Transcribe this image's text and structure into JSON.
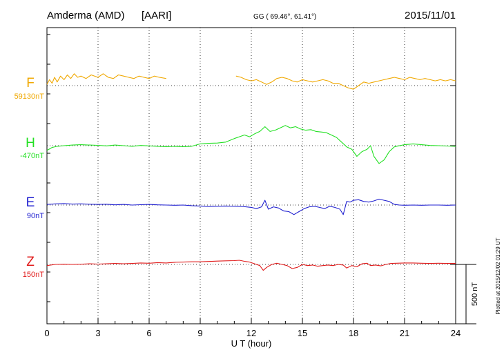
{
  "chart_data": {
    "type": "line",
    "station": "Amderma (AMD)",
    "institute": "[AARI]",
    "coords": "GG ( 69.46°,  61.41°)",
    "date": "2015/11/01",
    "xlabel": "U T (hour)",
    "x_ticks": [
      "0",
      "3",
      "6",
      "9",
      "12",
      "15",
      "18",
      "21",
      "24"
    ],
    "xlim": [
      0,
      24
    ],
    "scale_label": "500 nT",
    "plotted_note": "Plotted at 2015/12/02 01:29 UT",
    "grid": true,
    "series": [
      {
        "name": "F",
        "baseline_label": "59130nT",
        "color": "#f0a800",
        "baseline_value": 59130,
        "gap": [
          7.1,
          11.1
        ],
        "points": [
          [
            0.0,
            59140
          ],
          [
            0.15,
            59180
          ],
          [
            0.3,
            59150
          ],
          [
            0.45,
            59200
          ],
          [
            0.6,
            59160
          ],
          [
            0.8,
            59210
          ],
          [
            1.0,
            59180
          ],
          [
            1.2,
            59220
          ],
          [
            1.4,
            59190
          ],
          [
            1.6,
            59230
          ],
          [
            1.8,
            59200
          ],
          [
            2.0,
            59210
          ],
          [
            2.3,
            59190
          ],
          [
            2.6,
            59220
          ],
          [
            3.0,
            59200
          ],
          [
            3.3,
            59230
          ],
          [
            3.6,
            59200
          ],
          [
            3.9,
            59190
          ],
          [
            4.2,
            59220
          ],
          [
            4.5,
            59210
          ],
          [
            4.8,
            59200
          ],
          [
            5.1,
            59190
          ],
          [
            5.4,
            59210
          ],
          [
            5.7,
            59200
          ],
          [
            6.0,
            59190
          ],
          [
            6.3,
            59210
          ],
          [
            6.6,
            59200
          ],
          [
            7.0,
            59190
          ],
          [
            11.1,
            59210
          ],
          [
            11.4,
            59200
          ],
          [
            11.7,
            59180
          ],
          [
            12.0,
            59170
          ],
          [
            12.3,
            59180
          ],
          [
            12.6,
            59160
          ],
          [
            12.9,
            59140
          ],
          [
            13.2,
            59160
          ],
          [
            13.5,
            59190
          ],
          [
            13.8,
            59200
          ],
          [
            14.1,
            59190
          ],
          [
            14.4,
            59170
          ],
          [
            14.7,
            59160
          ],
          [
            15.0,
            59180
          ],
          [
            15.3,
            59170
          ],
          [
            15.6,
            59160
          ],
          [
            15.9,
            59170
          ],
          [
            16.2,
            59180
          ],
          [
            16.5,
            59170
          ],
          [
            16.8,
            59150
          ],
          [
            17.1,
            59150
          ],
          [
            17.4,
            59130
          ],
          [
            17.7,
            59110
          ],
          [
            18.0,
            59100
          ],
          [
            18.3,
            59130
          ],
          [
            18.6,
            59160
          ],
          [
            18.9,
            59150
          ],
          [
            19.2,
            59160
          ],
          [
            19.5,
            59170
          ],
          [
            19.8,
            59180
          ],
          [
            20.1,
            59190
          ],
          [
            20.4,
            59200
          ],
          [
            20.7,
            59190
          ],
          [
            21.0,
            59180
          ],
          [
            21.3,
            59200
          ],
          [
            21.6,
            59190
          ],
          [
            21.9,
            59180
          ],
          [
            22.2,
            59190
          ],
          [
            22.5,
            59180
          ],
          [
            22.8,
            59170
          ],
          [
            23.1,
            59180
          ],
          [
            23.4,
            59170
          ],
          [
            23.7,
            59180
          ],
          [
            24.0,
            59170
          ]
        ]
      },
      {
        "name": "H",
        "baseline_label": "-470nT",
        "color": "#22e022",
        "baseline_value": -470,
        "points": [
          [
            0.0,
            -510
          ],
          [
            0.3,
            -485
          ],
          [
            0.6,
            -475
          ],
          [
            1.0,
            -470
          ],
          [
            1.5,
            -465
          ],
          [
            2.0,
            -462
          ],
          [
            2.5,
            -465
          ],
          [
            3.0,
            -467
          ],
          [
            3.5,
            -472
          ],
          [
            4.0,
            -465
          ],
          [
            4.5,
            -470
          ],
          [
            5.0,
            -475
          ],
          [
            5.5,
            -468
          ],
          [
            6.0,
            -472
          ],
          [
            6.5,
            -475
          ],
          [
            7.0,
            -478
          ],
          [
            7.5,
            -476
          ],
          [
            8.0,
            -478
          ],
          [
            8.5,
            -475
          ],
          [
            9.0,
            -455
          ],
          [
            9.5,
            -450
          ],
          [
            10.0,
            -448
          ],
          [
            10.5,
            -440
          ],
          [
            11.0,
            -410
          ],
          [
            11.3,
            -395
          ],
          [
            11.6,
            -380
          ],
          [
            11.9,
            -395
          ],
          [
            12.2,
            -370
          ],
          [
            12.5,
            -350
          ],
          [
            12.8,
            -310
          ],
          [
            13.1,
            -350
          ],
          [
            13.4,
            -340
          ],
          [
            13.7,
            -320
          ],
          [
            14.0,
            -300
          ],
          [
            14.3,
            -320
          ],
          [
            14.6,
            -310
          ],
          [
            14.9,
            -330
          ],
          [
            15.2,
            -340
          ],
          [
            15.5,
            -335
          ],
          [
            15.8,
            -350
          ],
          [
            16.1,
            -355
          ],
          [
            16.4,
            -360
          ],
          [
            16.7,
            -380
          ],
          [
            17.0,
            -400
          ],
          [
            17.3,
            -440
          ],
          [
            17.6,
            -480
          ],
          [
            17.9,
            -500
          ],
          [
            18.2,
            -560
          ],
          [
            18.5,
            -520
          ],
          [
            18.8,
            -500
          ],
          [
            19.0,
            -470
          ],
          [
            19.2,
            -560
          ],
          [
            19.5,
            -620
          ],
          [
            19.8,
            -590
          ],
          [
            20.1,
            -520
          ],
          [
            20.4,
            -480
          ],
          [
            20.7,
            -470
          ],
          [
            21.0,
            -462
          ],
          [
            21.5,
            -455
          ],
          [
            22.0,
            -462
          ],
          [
            22.5,
            -468
          ],
          [
            23.0,
            -470
          ],
          [
            23.5,
            -473
          ],
          [
            24.0,
            -475
          ]
        ]
      },
      {
        "name": "E",
        "baseline_label": "90nT",
        "color": "#2020d0",
        "baseline_value": 90,
        "points": [
          [
            0.0,
            95
          ],
          [
            0.5,
            100
          ],
          [
            1.0,
            102
          ],
          [
            1.5,
            98
          ],
          [
            2.0,
            100
          ],
          [
            2.5,
            97
          ],
          [
            3.0,
            95
          ],
          [
            3.5,
            97
          ],
          [
            4.0,
            92
          ],
          [
            4.5,
            95
          ],
          [
            5.0,
            90
          ],
          [
            5.5,
            93
          ],
          [
            6.0,
            95
          ],
          [
            6.5,
            92
          ],
          [
            7.0,
            90
          ],
          [
            7.5,
            88
          ],
          [
            8.0,
            90
          ],
          [
            8.5,
            85
          ],
          [
            9.0,
            82
          ],
          [
            9.5,
            78
          ],
          [
            10.0,
            80
          ],
          [
            10.5,
            82
          ],
          [
            11.0,
            80
          ],
          [
            11.5,
            78
          ],
          [
            12.0,
            70
          ],
          [
            12.3,
            60
          ],
          [
            12.6,
            75
          ],
          [
            12.8,
            130
          ],
          [
            13.0,
            55
          ],
          [
            13.3,
            75
          ],
          [
            13.6,
            65
          ],
          [
            13.9,
            40
          ],
          [
            14.2,
            35
          ],
          [
            14.5,
            10
          ],
          [
            14.8,
            35
          ],
          [
            15.1,
            60
          ],
          [
            15.4,
            75
          ],
          [
            15.7,
            80
          ],
          [
            16.0,
            70
          ],
          [
            16.3,
            60
          ],
          [
            16.6,
            80
          ],
          [
            16.9,
            70
          ],
          [
            17.2,
            55
          ],
          [
            17.4,
            10
          ],
          [
            17.6,
            120
          ],
          [
            17.8,
            115
          ],
          [
            18.0,
            130
          ],
          [
            18.3,
            135
          ],
          [
            18.6,
            120
          ],
          [
            18.9,
            115
          ],
          [
            19.2,
            125
          ],
          [
            19.5,
            140
          ],
          [
            19.8,
            130
          ],
          [
            20.1,
            120
          ],
          [
            20.4,
            95
          ],
          [
            20.7,
            90
          ],
          [
            21.0,
            88
          ],
          [
            21.5,
            90
          ],
          [
            22.0,
            88
          ],
          [
            22.5,
            90
          ],
          [
            23.0,
            90
          ],
          [
            23.5,
            88
          ],
          [
            24.0,
            90
          ]
        ]
      },
      {
        "name": "Z",
        "baseline_label": "150nT",
        "color": "#e01a1a",
        "baseline_value": 150,
        "points": [
          [
            0.0,
            140
          ],
          [
            0.5,
            150
          ],
          [
            1.0,
            152
          ],
          [
            1.5,
            150
          ],
          [
            2.0,
            152
          ],
          [
            2.5,
            155
          ],
          [
            3.0,
            153
          ],
          [
            3.5,
            155
          ],
          [
            4.0,
            158
          ],
          [
            4.5,
            155
          ],
          [
            5.0,
            158
          ],
          [
            5.5,
            162
          ],
          [
            6.0,
            160
          ],
          [
            6.5,
            165
          ],
          [
            7.0,
            162
          ],
          [
            7.5,
            168
          ],
          [
            8.0,
            170
          ],
          [
            8.5,
            172
          ],
          [
            9.0,
            172
          ],
          [
            9.5,
            175
          ],
          [
            10.0,
            178
          ],
          [
            10.5,
            180
          ],
          [
            11.0,
            182
          ],
          [
            11.3,
            185
          ],
          [
            11.6,
            176
          ],
          [
            11.9,
            170
          ],
          [
            12.2,
            155
          ],
          [
            12.5,
            140
          ],
          [
            12.7,
            100
          ],
          [
            12.9,
            125
          ],
          [
            13.2,
            150
          ],
          [
            13.5,
            160
          ],
          [
            13.8,
            150
          ],
          [
            14.1,
            140
          ],
          [
            14.4,
            115
          ],
          [
            14.7,
            125
          ],
          [
            15.0,
            150
          ],
          [
            15.3,
            140
          ],
          [
            15.6,
            145
          ],
          [
            15.9,
            135
          ],
          [
            16.2,
            140
          ],
          [
            16.5,
            145
          ],
          [
            16.8,
            140
          ],
          [
            17.1,
            150
          ],
          [
            17.4,
            145
          ],
          [
            17.6,
            120
          ],
          [
            17.9,
            140
          ],
          [
            18.2,
            130
          ],
          [
            18.5,
            155
          ],
          [
            18.8,
            160
          ],
          [
            19.0,
            140
          ],
          [
            19.3,
            145
          ],
          [
            19.6,
            138
          ],
          [
            19.9,
            150
          ],
          [
            20.2,
            158
          ],
          [
            20.5,
            160
          ],
          [
            21.0,
            162
          ],
          [
            21.5,
            162
          ],
          [
            22.0,
            160
          ],
          [
            22.5,
            158
          ],
          [
            23.0,
            160
          ],
          [
            23.5,
            158
          ],
          [
            24.0,
            158
          ]
        ]
      }
    ]
  }
}
